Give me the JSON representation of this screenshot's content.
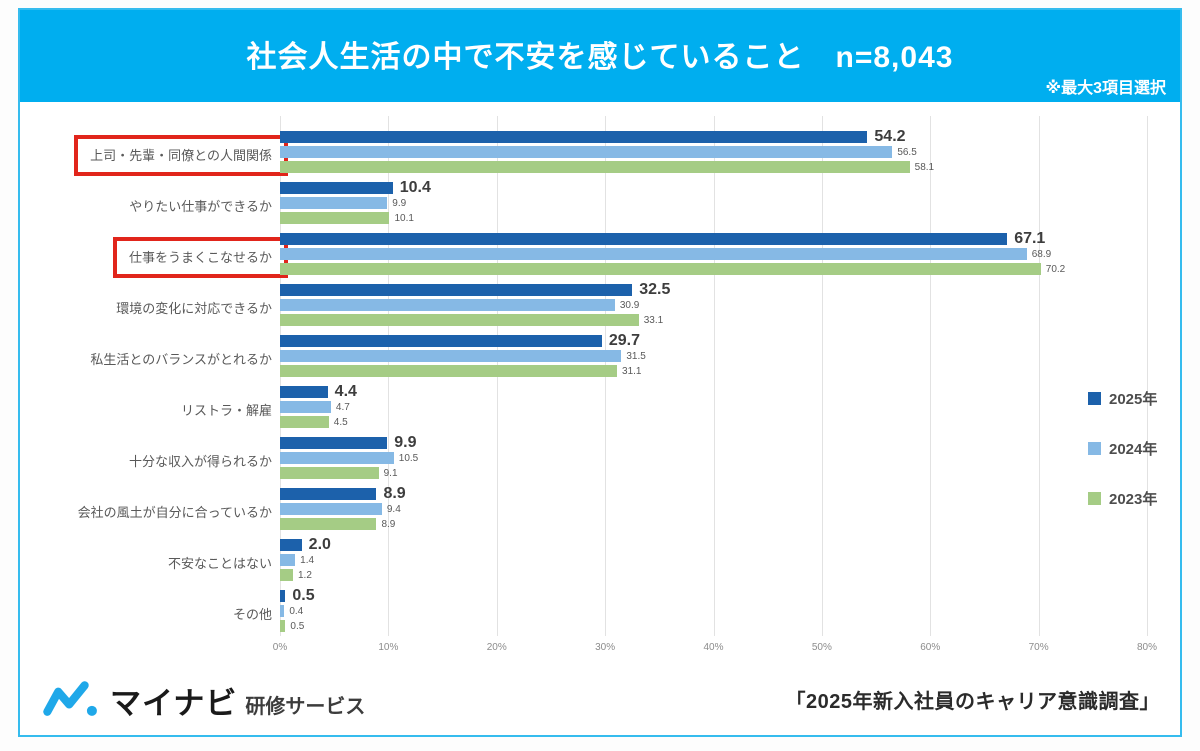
{
  "header": {
    "title": "社会人生活の中で不安を感じていること　n=8,043",
    "note": "※最大3項目選択",
    "bg_color": "#00AEEF"
  },
  "chart_data": {
    "type": "bar",
    "orientation": "horizontal",
    "unit": "%",
    "categories": [
      "上司・先輩・同僚との人間関係",
      "やりたい仕事ができるか",
      "仕事をうまくこなせるか",
      "環境の変化に対応できるか",
      "私生活とのバランスがとれるか",
      "リストラ・解雇",
      "十分な収入が得られるか",
      "会社の風土が自分に合っているか",
      "不安なことはない",
      "その他"
    ],
    "highlighted_categories": [
      "上司・先輩・同僚との人間関係",
      "仕事をうまくこなせるか"
    ],
    "series": [
      {
        "name": "2025年",
        "color": "#1C61AB",
        "values": [
          54.2,
          10.4,
          67.1,
          32.5,
          29.7,
          4.4,
          9.9,
          8.9,
          2.0,
          0.5
        ]
      },
      {
        "name": "2024年",
        "color": "#86B9E5",
        "values": [
          56.5,
          9.9,
          68.9,
          30.9,
          31.5,
          4.7,
          10.5,
          9.4,
          1.4,
          0.4
        ]
      },
      {
        "name": "2023年",
        "color": "#A5CC85",
        "values": [
          58.1,
          10.1,
          70.2,
          33.1,
          31.1,
          4.5,
          9.1,
          8.9,
          1.2,
          0.5
        ]
      }
    ],
    "xlim": [
      0,
      80
    ],
    "x_ticks": [
      "0%",
      "10%",
      "20%",
      "30%",
      "40%",
      "50%",
      "60%",
      "70%",
      "80%"
    ],
    "grid": true,
    "legend_position": "right",
    "highlight_box_color": "#E1251B"
  },
  "footer": {
    "logo_brand": "マイナビ",
    "logo_suffix": "研修サービス",
    "source": "「2025年新入社員のキャリア意識調査」"
  }
}
